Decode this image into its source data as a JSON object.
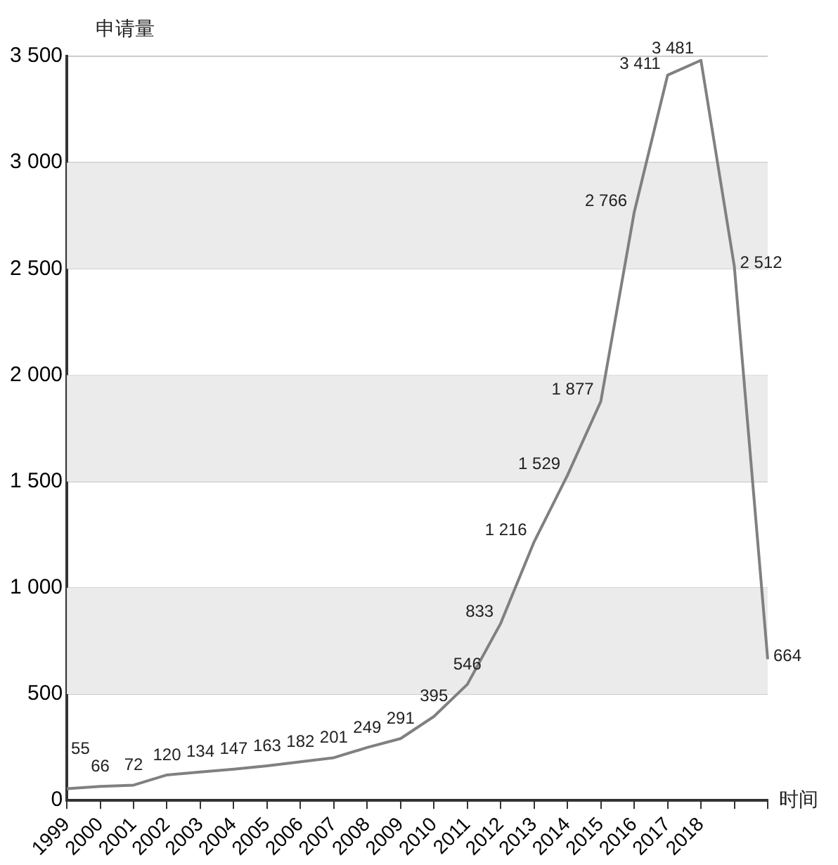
{
  "chart_data": {
    "type": "line",
    "ylabel": "申请量",
    "xlabel": "时间",
    "categories": [
      "1999",
      "2000",
      "2001",
      "2002",
      "2003",
      "2004",
      "2005",
      "2006",
      "2007",
      "2008",
      "2009",
      "2010",
      "2011",
      "2012",
      "2013",
      "2014",
      "2015",
      "2016",
      "2017",
      "2018",
      null,
      null
    ],
    "series": [
      {
        "color": "#808080",
        "values": [
          55,
          66,
          72,
          120,
          134,
          147,
          163,
          182,
          201,
          249,
          291,
          395,
          546,
          833,
          1216,
          1529,
          1877,
          2766,
          3411,
          3481,
          2512,
          664
        ],
        "value_labels": [
          "55",
          "66",
          "72",
          "120",
          "134",
          "147",
          "163",
          "182",
          "201",
          "249",
          "291",
          "395",
          "546",
          "833",
          "1 216",
          "1 529",
          "1 877",
          "2 766",
          "3 411",
          "3 481",
          "2 512",
          "664"
        ]
      }
    ],
    "ylim": [
      0,
      3500
    ],
    "yticks": [
      {
        "value": 0,
        "label": "0"
      },
      {
        "value": 500,
        "label": "500"
      },
      {
        "value": 1000,
        "label": "1 000"
      },
      {
        "value": 1500,
        "label": "1 500"
      },
      {
        "value": 2000,
        "label": "2 000"
      },
      {
        "value": 2500,
        "label": "2 500"
      },
      {
        "value": 3000,
        "label": "3 000"
      },
      {
        "value": 3500,
        "label": "3 500"
      }
    ],
    "bands": [
      {
        "axis": "y",
        "from": 500,
        "to": 1000,
        "color": "#ebebeb"
      },
      {
        "axis": "y",
        "from": 1500,
        "to": 2000,
        "color": "#ebebeb"
      },
      {
        "axis": "y",
        "from": 2500,
        "to": 3000,
        "color": "#ebebeb"
      }
    ],
    "grid": "y",
    "legend": false,
    "marker": "none",
    "line_style": "solid"
  }
}
